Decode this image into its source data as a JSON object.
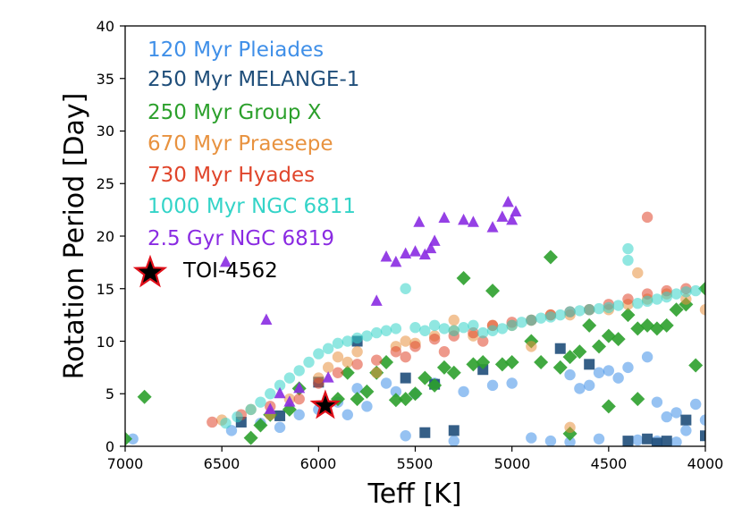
{
  "chart_data": {
    "type": "scatter",
    "title": "",
    "xlabel": "Teff [K]",
    "ylabel": "Rotation Period [Day]",
    "xlim": [
      7000,
      4000
    ],
    "ylim": [
      0,
      40
    ],
    "grid": false,
    "legend_position": "top-left",
    "x_ticks": [
      "7000",
      "6500",
      "6000",
      "5500",
      "5000",
      "4500",
      "4000"
    ],
    "x_tick_values": [
      7000,
      6500,
      6000,
      5500,
      5000,
      4500,
      4000
    ],
    "y_ticks": [
      "0",
      "5",
      "10",
      "15",
      "20",
      "25",
      "30",
      "35",
      "40"
    ],
    "y_tick_values": [
      0,
      5,
      10,
      15,
      20,
      25,
      30,
      35,
      40
    ],
    "series": [
      {
        "name": "120 Myr Pleiades",
        "color": "#3f8fe8",
        "marker": "circle",
        "alpha": 0.55,
        "points": [
          [
            6960,
            0.7
          ],
          [
            6450,
            1.5
          ],
          [
            6300,
            2.2
          ],
          [
            6200,
            1.8
          ],
          [
            6100,
            3.0
          ],
          [
            5900,
            4.2
          ],
          [
            5850,
            3.0
          ],
          [
            5750,
            3.8
          ],
          [
            5650,
            6.0
          ],
          [
            5550,
            1.0
          ],
          [
            5500,
            5.0
          ],
          [
            5400,
            6.0
          ],
          [
            5300,
            0.5
          ],
          [
            5250,
            5.2
          ],
          [
            5100,
            5.8
          ],
          [
            5000,
            6.0
          ],
          [
            4900,
            0.8
          ],
          [
            4800,
            0.5
          ],
          [
            4700,
            6.8
          ],
          [
            4650,
            5.5
          ],
          [
            4600,
            5.8
          ],
          [
            4550,
            7.0
          ],
          [
            4500,
            7.2
          ],
          [
            4450,
            6.5
          ],
          [
            4400,
            7.5
          ],
          [
            4300,
            8.5
          ],
          [
            4250,
            4.2
          ],
          [
            4200,
            2.8
          ],
          [
            4150,
            3.2
          ],
          [
            4100,
            1.5
          ],
          [
            4050,
            4.0
          ],
          [
            4000,
            2.5
          ],
          [
            4350,
            0.6
          ],
          [
            4550,
            0.7
          ],
          [
            4700,
            0.4
          ],
          [
            4250,
            0.5
          ],
          [
            4150,
            0.4
          ],
          [
            5600,
            5.2
          ],
          [
            5800,
            5.5
          ],
          [
            6000,
            3.5
          ]
        ]
      },
      {
        "name": "250 Myr MELANGE-1",
        "color": "#1f4e7a",
        "marker": "square",
        "alpha": 0.9,
        "points": [
          [
            6400,
            2.3
          ],
          [
            6200,
            2.9
          ],
          [
            6000,
            6.1
          ],
          [
            5800,
            10.0
          ],
          [
            5550,
            6.5
          ],
          [
            5450,
            1.3
          ],
          [
            5400,
            5.9
          ],
          [
            5300,
            1.5
          ],
          [
            5150,
            7.3
          ],
          [
            4750,
            9.3
          ],
          [
            4600,
            7.8
          ],
          [
            4400,
            0.5
          ],
          [
            4300,
            0.7
          ],
          [
            4250,
            0.3
          ],
          [
            4200,
            0.5
          ],
          [
            4100,
            2.5
          ],
          [
            4000,
            1.0
          ]
        ]
      },
      {
        "name": "250 Myr Group X",
        "color": "#2ca02c",
        "marker": "diamond",
        "alpha": 0.9,
        "points": [
          [
            7000,
            0.7
          ],
          [
            6900,
            4.7
          ],
          [
            6350,
            0.8
          ],
          [
            6300,
            2.0
          ],
          [
            6250,
            3.0
          ],
          [
            6150,
            3.5
          ],
          [
            6100,
            5.5
          ],
          [
            5900,
            4.5
          ],
          [
            5850,
            7.0
          ],
          [
            5800,
            4.5
          ],
          [
            5750,
            5.2
          ],
          [
            5700,
            7.0
          ],
          [
            5650,
            8.0
          ],
          [
            5600,
            4.4
          ],
          [
            5550,
            4.5
          ],
          [
            5500,
            5.0
          ],
          [
            5450,
            6.5
          ],
          [
            5400,
            5.8
          ],
          [
            5350,
            7.5
          ],
          [
            5300,
            7.0
          ],
          [
            5250,
            16.0
          ],
          [
            5200,
            7.8
          ],
          [
            5150,
            8.0
          ],
          [
            5100,
            14.8
          ],
          [
            5050,
            7.8
          ],
          [
            5000,
            8.0
          ],
          [
            4900,
            10.0
          ],
          [
            4850,
            8.0
          ],
          [
            4800,
            18.0
          ],
          [
            4750,
            7.5
          ],
          [
            4700,
            8.5
          ],
          [
            4650,
            9.0
          ],
          [
            4600,
            11.5
          ],
          [
            4550,
            9.5
          ],
          [
            4500,
            10.5
          ],
          [
            4450,
            10.2
          ],
          [
            4400,
            12.5
          ],
          [
            4350,
            11.2
          ],
          [
            4300,
            11.5
          ],
          [
            4250,
            11.2
          ],
          [
            4200,
            11.5
          ],
          [
            4150,
            13.0
          ],
          [
            4100,
            13.5
          ],
          [
            4050,
            7.7
          ],
          [
            4000,
            15.0
          ],
          [
            4500,
            3.8
          ],
          [
            4700,
            1.2
          ],
          [
            4350,
            4.5
          ]
        ]
      },
      {
        "name": "670 Myr Praesepe",
        "color": "#e8923f",
        "marker": "circle",
        "alpha": 0.55,
        "points": [
          [
            6500,
            2.5
          ],
          [
            6350,
            3.5
          ],
          [
            6250,
            3.0
          ],
          [
            6150,
            4.5
          ],
          [
            6000,
            6.5
          ],
          [
            5950,
            7.5
          ],
          [
            5900,
            8.5
          ],
          [
            5850,
            8.0
          ],
          [
            5800,
            9.0
          ],
          [
            5700,
            7.0
          ],
          [
            5600,
            9.5
          ],
          [
            5550,
            10.0
          ],
          [
            5500,
            9.8
          ],
          [
            5400,
            10.5
          ],
          [
            5300,
            11.0
          ],
          [
            5200,
            10.5
          ],
          [
            5100,
            11.5
          ],
          [
            5000,
            11.5
          ],
          [
            4900,
            12.0
          ],
          [
            4800,
            12.5
          ],
          [
            4700,
            12.5
          ],
          [
            4600,
            13.0
          ],
          [
            4500,
            13.0
          ],
          [
            4400,
            13.5
          ],
          [
            4350,
            16.5
          ],
          [
            4300,
            14.0
          ],
          [
            4200,
            14.5
          ],
          [
            4100,
            14.0
          ],
          [
            4000,
            13.0
          ],
          [
            4700,
            1.8
          ],
          [
            5300,
            12.0
          ],
          [
            4900,
            9.5
          ]
        ]
      },
      {
        "name": "730 Myr Hyades",
        "color": "#e0452b",
        "marker": "circle",
        "alpha": 0.55,
        "points": [
          [
            6550,
            2.3
          ],
          [
            6400,
            3.0
          ],
          [
            6250,
            3.8
          ],
          [
            6100,
            4.5
          ],
          [
            6000,
            6.0
          ],
          [
            5900,
            7.0
          ],
          [
            5800,
            7.8
          ],
          [
            5700,
            8.2
          ],
          [
            5600,
            9.0
          ],
          [
            5500,
            9.5
          ],
          [
            5400,
            10.2
          ],
          [
            5300,
            10.5
          ],
          [
            5200,
            10.8
          ],
          [
            5100,
            11.5
          ],
          [
            5000,
            11.8
          ],
          [
            4900,
            12.0
          ],
          [
            4800,
            12.5
          ],
          [
            4700,
            12.8
          ],
          [
            4600,
            13.0
          ],
          [
            4500,
            13.5
          ],
          [
            4400,
            14.0
          ],
          [
            4300,
            14.5
          ],
          [
            4300,
            21.8
          ],
          [
            4200,
            14.8
          ],
          [
            4100,
            15.0
          ],
          [
            5550,
            8.5
          ],
          [
            5350,
            9.0
          ],
          [
            5150,
            10.0
          ]
        ]
      },
      {
        "name": "1000 Myr NGC 6811",
        "color": "#34d4c8",
        "marker": "circle",
        "alpha": 0.55,
        "points": [
          [
            6480,
            2.2
          ],
          [
            6420,
            2.8
          ],
          [
            6350,
            3.5
          ],
          [
            6300,
            4.2
          ],
          [
            6250,
            5.0
          ],
          [
            6200,
            5.8
          ],
          [
            6150,
            6.5
          ],
          [
            6100,
            7.2
          ],
          [
            6050,
            8.0
          ],
          [
            6000,
            8.8
          ],
          [
            5950,
            9.3
          ],
          [
            5900,
            9.8
          ],
          [
            5850,
            10.0
          ],
          [
            5800,
            10.3
          ],
          [
            5750,
            10.5
          ],
          [
            5700,
            10.8
          ],
          [
            5650,
            11.0
          ],
          [
            5600,
            11.2
          ],
          [
            5550,
            15.0
          ],
          [
            5500,
            11.3
          ],
          [
            5450,
            11.0
          ],
          [
            5400,
            11.5
          ],
          [
            5350,
            11.2
          ],
          [
            5300,
            11.0
          ],
          [
            5250,
            11.3
          ],
          [
            5200,
            11.5
          ],
          [
            5150,
            10.8
          ],
          [
            5100,
            11.0
          ],
          [
            5050,
            11.2
          ],
          [
            5000,
            11.5
          ],
          [
            4950,
            11.8
          ],
          [
            4900,
            12.0
          ],
          [
            4850,
            12.2
          ],
          [
            4800,
            12.3
          ],
          [
            4750,
            12.5
          ],
          [
            4700,
            12.8
          ],
          [
            4650,
            12.9
          ],
          [
            4600,
            13.0
          ],
          [
            4550,
            13.1
          ],
          [
            4500,
            13.2
          ],
          [
            4450,
            13.4
          ],
          [
            4400,
            18.8
          ],
          [
            4400,
            17.7
          ],
          [
            4350,
            13.6
          ],
          [
            4300,
            13.8
          ],
          [
            4250,
            14.0
          ],
          [
            4200,
            14.2
          ],
          [
            4150,
            14.5
          ],
          [
            4100,
            14.7
          ],
          [
            4050,
            14.8
          ]
        ]
      },
      {
        "name": "2.5 Gyr NGC 6819",
        "color": "#8a2be2",
        "marker": "triangle",
        "alpha": 0.9,
        "points": [
          [
            6480,
            17.5
          ],
          [
            6270,
            12.0
          ],
          [
            6250,
            3.5
          ],
          [
            6200,
            5.0
          ],
          [
            6150,
            4.2
          ],
          [
            6100,
            5.5
          ],
          [
            5950,
            6.5
          ],
          [
            5700,
            13.8
          ],
          [
            5650,
            18.0
          ],
          [
            5600,
            17.5
          ],
          [
            5550,
            18.3
          ],
          [
            5500,
            18.5
          ],
          [
            5480,
            21.3
          ],
          [
            5450,
            18.2
          ],
          [
            5420,
            18.8
          ],
          [
            5400,
            19.5
          ],
          [
            5350,
            21.7
          ],
          [
            5250,
            21.5
          ],
          [
            5200,
            21.3
          ],
          [
            5100,
            20.8
          ],
          [
            5050,
            21.8
          ],
          [
            5000,
            21.5
          ],
          [
            5020,
            23.2
          ],
          [
            4980,
            22.3
          ]
        ]
      }
    ],
    "highlight": {
      "name": "TOI-4562",
      "teff": 5965,
      "prot": 3.86,
      "marker": "star",
      "face_color": "#000000",
      "edge_color": "#e0101a"
    },
    "legend": [
      {
        "label": "120 Myr Pleiades",
        "color": "#3f8fe8"
      },
      {
        "label": "250 Myr MELANGE-1",
        "color": "#1f4e7a"
      },
      {
        "label": "250 Myr Group X",
        "color": "#2ca02c"
      },
      {
        "label": "670 Myr Praesepe",
        "color": "#e8923f"
      },
      {
        "label": "730 Myr Hyades",
        "color": "#e0452b"
      },
      {
        "label": "1000 Myr NGC 6811",
        "color": "#34d4c8"
      },
      {
        "label": "2.5 Gyr NGC 6819",
        "color": "#8a2be2"
      },
      {
        "label": "TOI-4562",
        "color": "#000000"
      }
    ]
  }
}
